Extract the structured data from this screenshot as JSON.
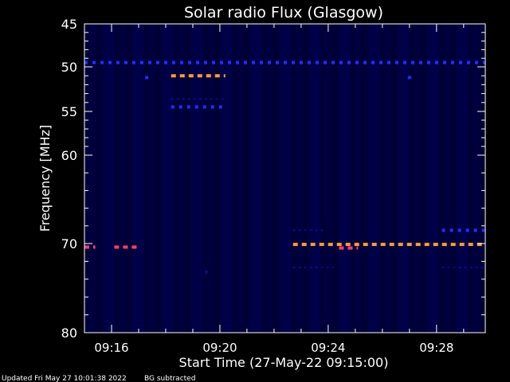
{
  "chart_data": {
    "type": "heatmap",
    "title": "Solar radio Flux (Glasgow)",
    "xlabel": "Start Time (27-May-22 09:15:00)",
    "ylabel": "Frequency [MHz]",
    "x_unit": "minutes since 09:15:00",
    "xlim": [
      0,
      14.8
    ],
    "ylim": [
      45,
      80
    ],
    "x_ticks": [
      {
        "label": "09:16",
        "value": 1
      },
      {
        "label": "09:20",
        "value": 5
      },
      {
        "label": "09:24",
        "value": 9
      },
      {
        "label": "09:28",
        "value": 13
      }
    ],
    "y_ticks": [
      {
        "label": "45",
        "value": 45
      },
      {
        "label": "50",
        "value": 50
      },
      {
        "label": "55",
        "value": 55
      },
      {
        "label": "60",
        "value": 60
      },
      {
        "label": "70",
        "value": 70
      },
      {
        "label": "80",
        "value": 80
      }
    ],
    "background": "#00003a",
    "colors": {
      "low": "#0a0a8a",
      "mid": "#1f2fff",
      "high": "#ff3b6b",
      "peak": "#ff9d3c"
    },
    "bands": [
      {
        "freq": 49.5,
        "start": 0.0,
        "end": 14.8,
        "level": "mid"
      },
      {
        "freq": 51.0,
        "start": 3.2,
        "end": 5.2,
        "level": "peak"
      },
      {
        "freq": 54.5,
        "start": 3.2,
        "end": 5.2,
        "level": "mid"
      },
      {
        "freq": 70.4,
        "start": 0.0,
        "end": 0.4,
        "level": "high"
      },
      {
        "freq": 70.4,
        "start": 1.1,
        "end": 2.0,
        "level": "high"
      },
      {
        "freq": 70.1,
        "start": 7.7,
        "end": 14.8,
        "level": "peak"
      },
      {
        "freq": 70.5,
        "start": 9.4,
        "end": 10.1,
        "level": "high"
      },
      {
        "freq": 68.5,
        "start": 13.2,
        "end": 14.8,
        "level": "mid"
      },
      {
        "freq": 72.7,
        "start": 13.2,
        "end": 14.8,
        "level": "low"
      },
      {
        "freq": 72.7,
        "start": 7.7,
        "end": 9.2,
        "level": "low"
      },
      {
        "freq": 53.6,
        "start": 3.2,
        "end": 5.2,
        "level": "low"
      },
      {
        "freq": 68.5,
        "start": 7.7,
        "end": 8.8,
        "level": "low"
      }
    ],
    "points": [
      {
        "t": 2.3,
        "freq": 51.2,
        "level": "mid"
      },
      {
        "t": 12.0,
        "freq": 51.2,
        "level": "mid"
      },
      {
        "t": 4.5,
        "freq": 73.2,
        "level": "low"
      }
    ]
  },
  "footer": {
    "updated": "Updated Fri May 27 10:01:38 2022",
    "bg_note": "BG subtracted"
  }
}
